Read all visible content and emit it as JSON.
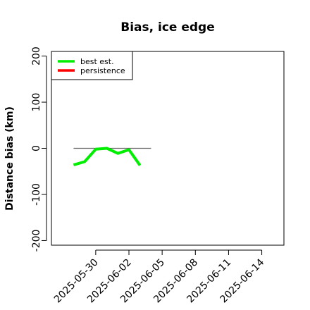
{
  "chart_data": {
    "type": "line",
    "title": "Bias, ice edge",
    "ylabel": "Distance bias (km)",
    "xlabel": "",
    "ylim": [
      -210,
      210
    ],
    "xlim": [
      "2025-05-26",
      "2025-06-16"
    ],
    "y_ticks": [
      -200,
      -100,
      0,
      100,
      200
    ],
    "x_ticks": [
      "2025-05-30",
      "2025-06-02",
      "2025-06-05",
      "2025-06-08",
      "2025-06-11",
      "2025-06-14"
    ],
    "grid": false,
    "legend_position": "top-left",
    "series": [
      {
        "name": "best est.",
        "color": "#00ee00",
        "x": [
          "2025-05-28",
          "2025-05-29",
          "2025-05-30",
          "2025-05-31",
          "2025-06-01",
          "2025-06-02",
          "2025-06-03",
          "2025-06-04"
        ],
        "values": [
          -36,
          -29,
          -2,
          0,
          -11,
          -3,
          -37,
          null
        ]
      },
      {
        "name": "persistence",
        "color": "#ff0000",
        "x": [],
        "values": []
      }
    ],
    "reference_line": {
      "color": "#666666",
      "x": [
        "2025-05-28",
        "2025-06-04"
      ],
      "y": 0
    }
  }
}
